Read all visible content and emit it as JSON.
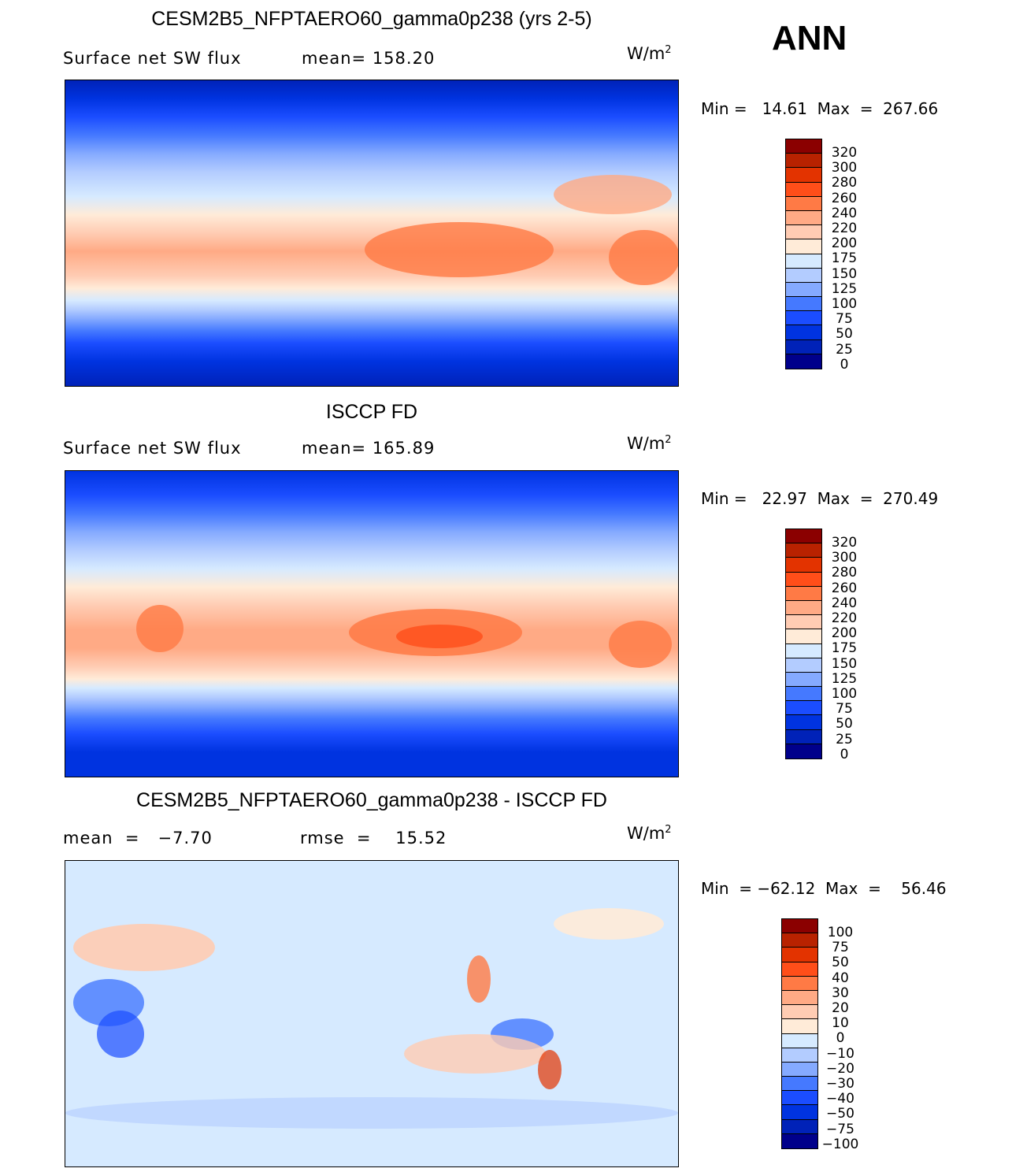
{
  "season": "ANN",
  "units_base": "W/m",
  "units_exp": "2",
  "panels": [
    {
      "title": "CESM2B5_NFPTAERO60_gamma0p238 (yrs 2-5)",
      "left": "Surface net SW flux",
      "right": "mean= 158.20",
      "min_max": "Min =   14.61  Max  =  267.66"
    },
    {
      "title": "ISCCP FD",
      "left": "Surface net SW flux",
      "right": "mean= 165.89",
      "min_max": "Min =   22.97  Max  =  270.49"
    },
    {
      "title": "CESM2B5_NFPTAERO60_gamma0p238 - ISCCP FD",
      "left": "mean  =   −7.70",
      "right": "rmse  =    15.52",
      "min_max": "Min  = −62.12  Max  =    56.46"
    }
  ],
  "chart_data": [
    {
      "type": "heatmap",
      "title": "CESM2B5_NFPTAERO60_gamma0p238 (yrs 2-5)",
      "variable": "Surface net SW flux",
      "mean": 158.2,
      "min": 14.61,
      "max": 267.66,
      "levels": [
        "320",
        "300",
        "280",
        "260",
        "240",
        "220",
        "200",
        "175",
        "150",
        "125",
        "100",
        "75",
        "50",
        "25",
        "0"
      ]
    },
    {
      "type": "heatmap",
      "title": "ISCCP FD",
      "variable": "Surface net SW flux",
      "mean": 165.89,
      "min": 22.97,
      "max": 270.49,
      "levels": [
        "320",
        "300",
        "280",
        "260",
        "240",
        "220",
        "200",
        "175",
        "150",
        "125",
        "100",
        "75",
        "50",
        "25",
        "0"
      ]
    },
    {
      "type": "heatmap",
      "title": "CESM2B5_NFPTAERO60_gamma0p238 - ISCCP FD",
      "mean": -7.7,
      "rmse": 15.52,
      "min": -62.12,
      "max": 56.46,
      "levels": [
        "100",
        "75",
        "50",
        "40",
        "30",
        "20",
        "10",
        "0",
        "−10",
        "−20",
        "−30",
        "−40",
        "−50",
        "−75",
        "−100"
      ]
    }
  ],
  "colors": [
    "#8B0000",
    "#B82200",
    "#E33300",
    "#FF4E19",
    "#FF7A45",
    "#FFAA85",
    "#FFCCB3",
    "#FFEBD8",
    "#D6EAFF",
    "#B3CCFF",
    "#85AAFF",
    "#4579FF",
    "#1B4DFF",
    "#0033E0",
    "#0022B8",
    "#00008B"
  ]
}
